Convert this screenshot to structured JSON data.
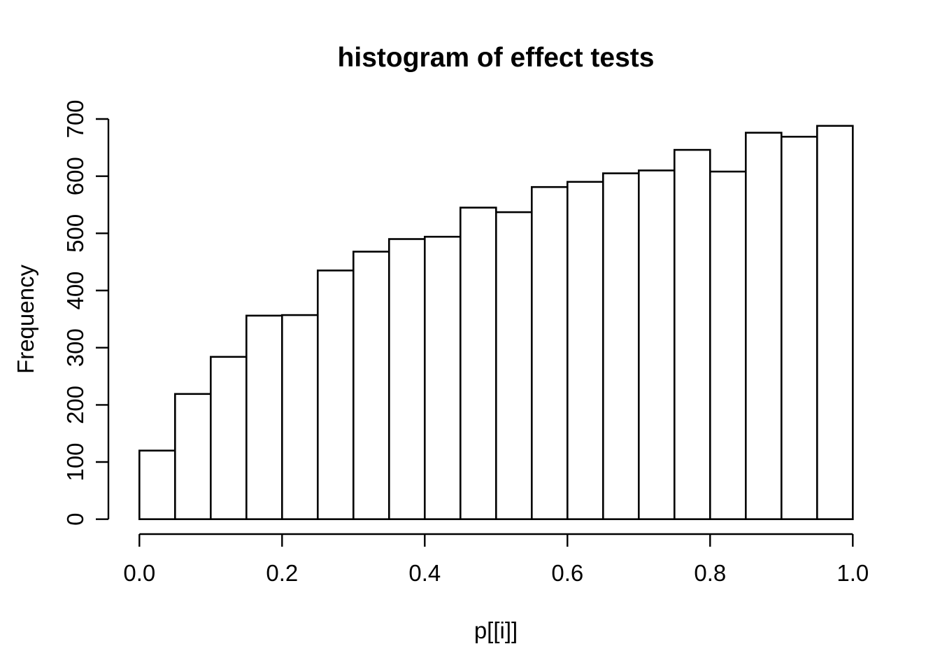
{
  "figure": {
    "background": "#ffffff",
    "foreground": "#000000"
  },
  "chart_data": {
    "type": "bar",
    "subtype": "histogram",
    "title": "histogram of effect tests",
    "xlabel": "p[[i]]",
    "ylabel": "Frequency",
    "bin_start": 0.0,
    "bin_width": 0.05,
    "values": [
      120,
      219,
      284,
      356,
      357,
      435,
      468,
      490,
      494,
      545,
      537,
      581,
      590,
      605,
      610,
      646,
      608,
      676,
      669,
      688
    ],
    "xlim": [
      0.0,
      1.0
    ],
    "ylim": [
      0,
      700
    ],
    "x_ticks": [
      0.0,
      0.2,
      0.4,
      0.6,
      0.8,
      1.0
    ],
    "x_tick_labels": [
      "0.0",
      "0.2",
      "0.4",
      "0.6",
      "0.8",
      "1.0"
    ],
    "y_ticks": [
      0,
      100,
      200,
      300,
      400,
      500,
      600,
      700
    ],
    "y_tick_labels": [
      "0",
      "100",
      "200",
      "300",
      "400",
      "500",
      "600",
      "700"
    ],
    "bar_fill": "#ffffff",
    "bar_stroke": "#000000",
    "axis_color": "#000000",
    "grid": false,
    "legend": null
  }
}
